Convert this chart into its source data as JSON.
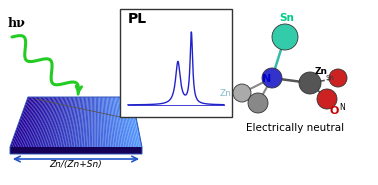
{
  "bg_color": "#ffffff",
  "title_text": "Electrically neutral",
  "pl_label": "PL",
  "hv_label": "hν",
  "zn_sn_label": "Zn/(Zn+Sn)",
  "sn_color": "#33ccaa",
  "n_color": "#3333cc",
  "zn_color": "#aaaaaa",
  "zn2_color": "#888888",
  "znSn_color": "#555555",
  "o_color": "#cc2222",
  "label_Sn_color": "#00cc88",
  "label_N_color": "#0000cc",
  "label_Zn_color": "#88bbcc",
  "label_O_color": "#cc0000"
}
